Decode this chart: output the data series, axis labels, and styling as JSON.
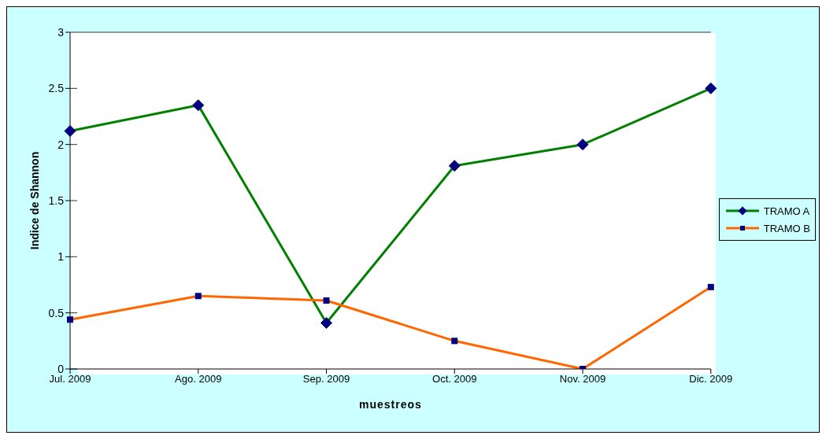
{
  "chart_data": {
    "type": "line",
    "xlabel": "muestreos",
    "ylabel": "Indice de Shannon",
    "categories": [
      "Jul. 2009",
      "Ago. 2009",
      "Sep. 2009",
      "Oct. 2009",
      "Nov. 2009",
      "Dic. 2009"
    ],
    "series": [
      {
        "name": "TRAMO A",
        "color": "#008000",
        "marker": "diamond",
        "values": [
          2.12,
          2.35,
          0.41,
          1.81,
          2.0,
          2.5
        ]
      },
      {
        "name": "TRAMO B",
        "color": "#ff6600",
        "marker": "square",
        "values": [
          0.44,
          0.65,
          0.61,
          0.25,
          0,
          0.73
        ]
      }
    ],
    "ylim": [
      0,
      3
    ],
    "yticks": [
      0,
      0.5,
      1,
      1.5,
      2,
      2.5,
      3
    ],
    "grid": "y",
    "legend": "right"
  }
}
